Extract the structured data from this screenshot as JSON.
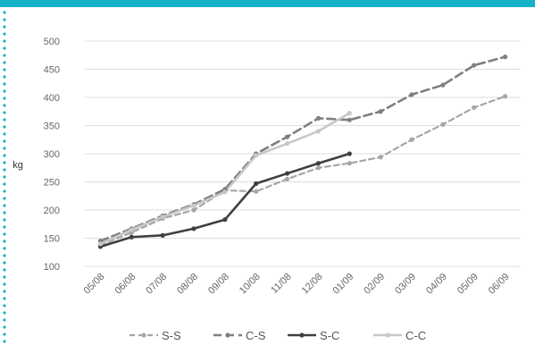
{
  "header": {
    "accent_color": "#14b4c8"
  },
  "chart_data": {
    "type": "line",
    "ylabel": "kg",
    "xlabel": "",
    "ylim": [
      100,
      500
    ],
    "yticks": [
      100,
      150,
      200,
      250,
      300,
      350,
      400,
      450,
      500
    ],
    "grid": true,
    "legend_position": "bottom",
    "categories": [
      "05/08",
      "06/08",
      "07/08",
      "08/08",
      "09/08",
      "10/08",
      "11/08",
      "12/08",
      "01/09",
      "02/09",
      "03/09",
      "04/09",
      "05/09",
      "06/09"
    ],
    "series": [
      {
        "name": "S-S",
        "color": "#a6a6a6",
        "dash": "6,4",
        "width": 2.2,
        "values": [
          138,
          160,
          185,
          200,
          235,
          233,
          255,
          275,
          283,
          294,
          325,
          352,
          382,
          402
        ]
      },
      {
        "name": "C-S",
        "color": "#7f7f7f",
        "dash": "9,5",
        "width": 2.6,
        "values": [
          145,
          167,
          190,
          210,
          237,
          300,
          330,
          363,
          360,
          375,
          405,
          422,
          457,
          472
        ]
      },
      {
        "name": "S-C",
        "color": "#404040",
        "dash": "",
        "width": 2.6,
        "values": [
          135,
          152,
          155,
          167,
          183,
          247,
          265,
          283,
          300,
          null,
          null,
          null,
          null,
          null
        ]
      },
      {
        "name": "C-C",
        "color": "#c8c8c8",
        "dash": "",
        "width": 2.6,
        "values": [
          140,
          165,
          188,
          208,
          232,
          297,
          318,
          340,
          372,
          null,
          null,
          null,
          null,
          null
        ]
      }
    ]
  }
}
